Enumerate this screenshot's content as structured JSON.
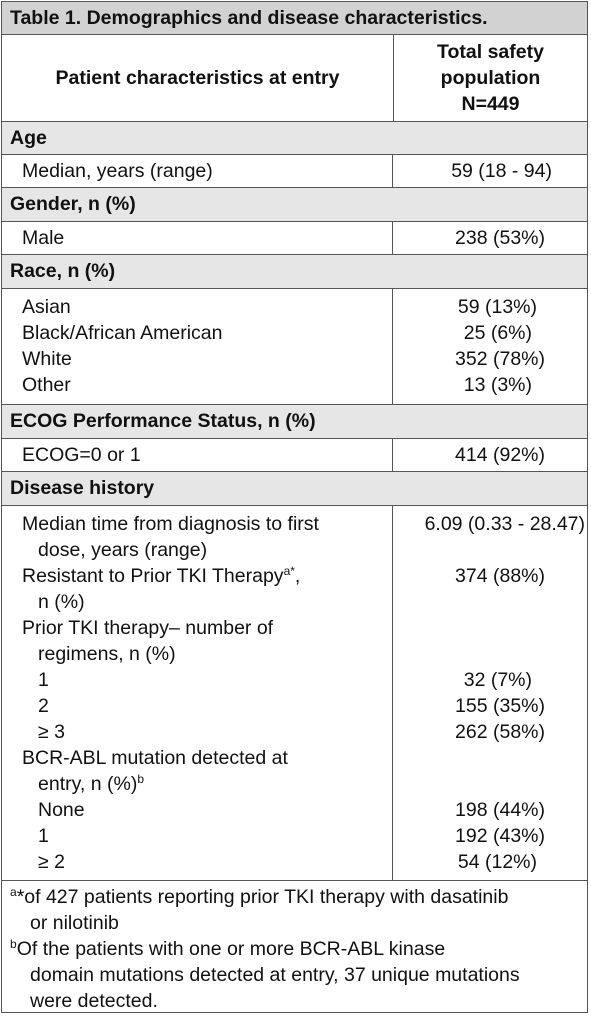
{
  "title": "Table 1. Demographics and disease characteristics.",
  "header": {
    "col1": "Patient characteristics at entry",
    "col2": [
      "Total safety",
      "population",
      "N=449"
    ]
  },
  "age": {
    "label": "Age",
    "rows": [
      {
        "label": "Median, years (range)",
        "value": "59 (18 - 94)"
      }
    ]
  },
  "gender": {
    "label": "Gender, n (%)",
    "rows": [
      {
        "label": "Male",
        "value": "238 (53%)"
      }
    ]
  },
  "race": {
    "label": "Race, n (%)",
    "rows": [
      {
        "label": "Asian",
        "value": "59 (13%)"
      },
      {
        "label": "Black/African American",
        "value": "25 (6%)"
      },
      {
        "label": "White",
        "value": "352 (78%)"
      },
      {
        "label": "Other",
        "value": "13 (3%)"
      }
    ]
  },
  "ecog": {
    "label": "ECOG Performance Status, n (%)",
    "rows": [
      {
        "label": "ECOG=0 or 1",
        "value": "414 (92%)"
      }
    ]
  },
  "disease": {
    "label": "Disease history",
    "median_time": {
      "line1": "Median time from diagnosis to first",
      "line2": "dose, years (range)",
      "value": "6.09 (0.33 - 28.47)"
    },
    "resistant": {
      "line1": "Resistant to Prior TKI Therapy",
      "sup": "a*",
      "line1_end": ",",
      "line2": "n (%)",
      "value": "374 (88%)"
    },
    "prior_tki": {
      "line1": "Prior TKI therapy– number of",
      "line2": "regimens, n (%)"
    },
    "prior_rows": [
      {
        "label": "1",
        "value": "32 (7%)"
      },
      {
        "label": "2",
        "value": "155 (35%)"
      },
      {
        "label": "≥ 3",
        "value": "262 (58%)"
      }
    ],
    "bcr": {
      "line1": "BCR-ABL mutation detected at",
      "line2": "entry, n (%)",
      "sup": "b"
    },
    "bcr_rows": [
      {
        "label": "None",
        "value": "198 (44%)"
      },
      {
        "label": "1",
        "value": "192 (43%)"
      },
      {
        "label": "≥ 2",
        "value": "54 (12%)"
      }
    ]
  },
  "footnotes": {
    "a_sup": "a",
    "a_line1": "*of 427 patients reporting prior TKI therapy with dasatinib",
    "a_line2": "or nilotinib",
    "b_sup": "b",
    "b_line1": "Of the patients with one or more BCR-ABL kinase",
    "b_line2": "domain mutations detected at entry, 37 unique mutations",
    "b_line3": "were detected."
  }
}
